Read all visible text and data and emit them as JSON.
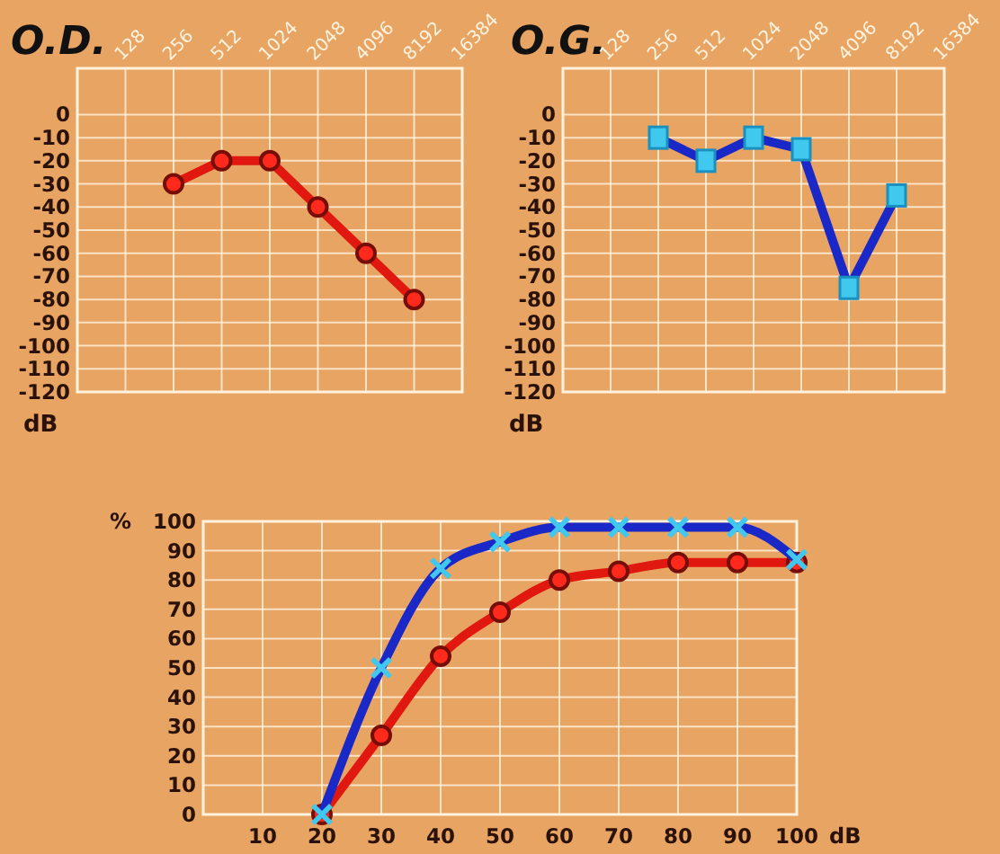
{
  "chart_data": [
    {
      "type": "line",
      "title": "O.D.",
      "ylabel": "dB",
      "log": "x",
      "x": [
        256,
        512,
        1024,
        2048,
        4096,
        8192
      ],
      "xlim": [
        64,
        16384
      ],
      "xticks": [
        128,
        256,
        512,
        1024,
        2048,
        4096,
        8192,
        16384
      ],
      "ylim": [
        -120,
        20
      ],
      "yticks": [
        -120,
        -110,
        -100,
        -90,
        -80,
        -70,
        -60,
        -50,
        -40,
        -30,
        -20,
        -10,
        0
      ],
      "grid": true,
      "marker": "circle",
      "line_style": "solid",
      "series": [
        {
          "color": "#e01810",
          "values": [
            -30,
            -20,
            -20,
            -40,
            -60,
            -80
          ]
        }
      ]
    },
    {
      "type": "line",
      "title": "O.G.",
      "ylabel": "dB",
      "log": "x",
      "x": [
        256,
        512,
        1024,
        2048,
        4096,
        8192
      ],
      "xlim": [
        64,
        16384
      ],
      "xticks": [
        128,
        256,
        512,
        1024,
        2048,
        4096,
        8192,
        16384
      ],
      "ylim": [
        -120,
        20
      ],
      "yticks": [
        -120,
        -110,
        -100,
        -90,
        -80,
        -70,
        -60,
        -50,
        -40,
        -30,
        -20,
        -10,
        0
      ],
      "grid": true,
      "marker": "square",
      "line_style": "solid",
      "series": [
        {
          "color": "#1a28c8",
          "values": [
            -10,
            -20,
            -10,
            -15,
            -75,
            -35
          ]
        }
      ]
    },
    {
      "type": "line",
      "ylabel": "%",
      "xlabel": "dB",
      "x": [
        20,
        30,
        40,
        50,
        60,
        70,
        80,
        90,
        100
      ],
      "xlim": [
        0,
        100
      ],
      "xticks": [
        10,
        20,
        30,
        40,
        50,
        60,
        70,
        80,
        90,
        100
      ],
      "ylim": [
        0,
        100
      ],
      "yticks": [
        0,
        10,
        20,
        30,
        40,
        50,
        60,
        70,
        80,
        90,
        100
      ],
      "grid": true,
      "line_style": "solid",
      "series": [
        {
          "color": "#e01810",
          "marker": "circle",
          "values": [
            0,
            27,
            54,
            69,
            80,
            83,
            86,
            86,
            86
          ]
        },
        {
          "color": "#1a28c8",
          "marker": "cross",
          "values": [
            0,
            50,
            84,
            93,
            98,
            98,
            98,
            98,
            87
          ]
        }
      ]
    }
  ]
}
